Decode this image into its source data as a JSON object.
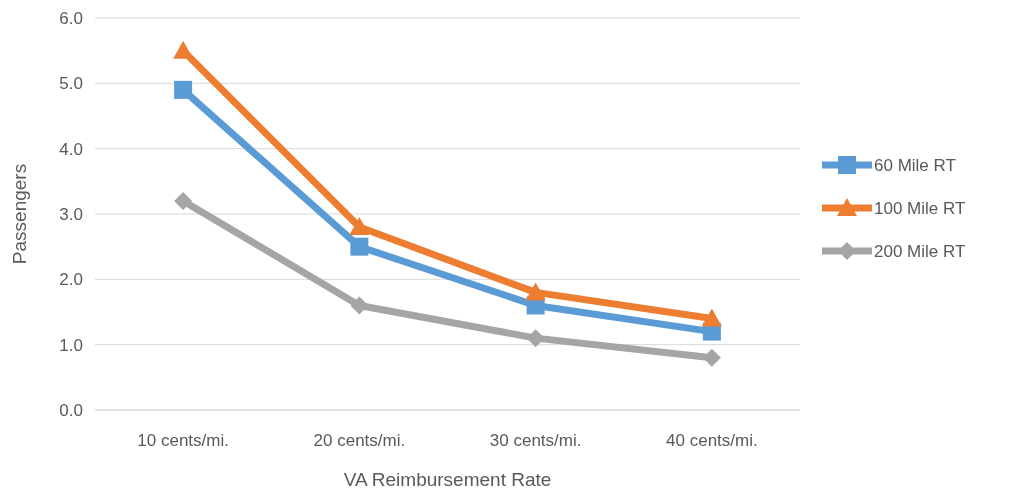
{
  "chart_data": {
    "type": "line",
    "xlabel": "VA Reimbursement Rate",
    "ylabel": "Passengers",
    "categories": [
      "10 cents/mi.",
      "20 cents/mi.",
      "30 cents/mi.",
      "40 cents/mi."
    ],
    "series": [
      {
        "name": "60 Mile RT",
        "color": "#5b9bd5",
        "marker": "square",
        "values": [
          4.9,
          2.5,
          1.6,
          1.2
        ]
      },
      {
        "name": "100 Mile RT",
        "color": "#ed7d31",
        "marker": "triangle",
        "values": [
          5.5,
          2.8,
          1.8,
          1.4
        ]
      },
      {
        "name": "200 Mile RT",
        "color": "#a5a5a5",
        "marker": "diamond",
        "values": [
          3.2,
          1.6,
          1.1,
          0.8
        ]
      }
    ],
    "ylim": [
      0,
      6
    ],
    "yticks": [
      {
        "value": 0,
        "label": "0.0"
      },
      {
        "value": 1,
        "label": "1.0"
      },
      {
        "value": 2,
        "label": "2.0"
      },
      {
        "value": 3,
        "label": "3.0"
      },
      {
        "value": 4,
        "label": "4.0"
      },
      {
        "value": 5,
        "label": "5.0"
      },
      {
        "value": 6,
        "label": "6.0"
      }
    ],
    "grid": "y",
    "legend": "right",
    "line_style": "solid"
  }
}
